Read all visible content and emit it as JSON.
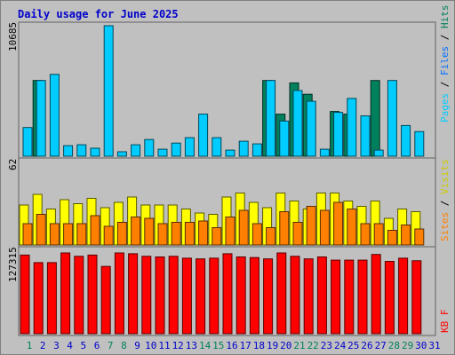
{
  "chart_data": {
    "type": "bar",
    "title": "Daily usage for June 2025",
    "categories": [
      "1",
      "2",
      "3",
      "4",
      "5",
      "6",
      "7",
      "8",
      "9",
      "10",
      "11",
      "12",
      "13",
      "14",
      "15",
      "16",
      "17",
      "18",
      "19",
      "20",
      "21",
      "22",
      "23",
      "24",
      "25",
      "26",
      "27",
      "28",
      "29",
      "30",
      "31"
    ],
    "weekend_days": [
      "1",
      "7",
      "8",
      "14",
      "15",
      "21",
      "22",
      "28",
      "29"
    ],
    "panels": {
      "top": {
        "scale_label": "10685",
        "max": 10685,
        "legend": [
          "Pages",
          "Files",
          "Hits"
        ],
        "series": [
          {
            "name": "Hits",
            "color": "#00805c",
            "values": [
              0,
              6160,
              0,
              0,
              0,
              0,
              0,
              0,
              0,
              0,
              0,
              0,
              0,
              0,
              0,
              0,
              0,
              0,
              6160,
              3420,
              5960,
              5040,
              0,
              3640,
              3420,
              0,
              6160,
              0,
              0,
              0,
              0
            ]
          },
          {
            "name": "Files",
            "color": "#00ccff",
            "values": [
              2330,
              6160,
              6660,
              860,
              930,
              650,
              10610,
              360,
              930,
              1360,
              570,
              1070,
              1510,
              3420,
              1510,
              500,
              1220,
              1000,
              6160,
              2860,
              5340,
              4470,
              570,
              3570,
              4700,
              3280,
              500,
              6160,
              2500,
              2000,
              0
            ]
          },
          {
            "name": "Pages",
            "color": "#0070ff",
            "values": [
              0,
              0,
              0,
              0,
              0,
              0,
              0,
              0,
              0,
              0,
              0,
              0,
              0,
              0,
              0,
              0,
              0,
              0,
              0,
              0,
              0,
              0,
              0,
              0,
              0,
              0,
              0,
              0,
              0,
              0,
              0
            ]
          }
        ]
      },
      "middle": {
        "scale_label": "62",
        "max": 62,
        "legend": [
          "Sites",
          "Visits"
        ],
        "series": [
          {
            "name": "Visits",
            "color": "#ffff00",
            "values": [
              30,
              38,
              27,
              34,
              31,
              35,
              28,
              32,
              36,
              30,
              30,
              30,
              27,
              24,
              23,
              36,
              39,
              32,
              28,
              39,
              33,
              27,
              39,
              39,
              33,
              29,
              33,
              20,
              27,
              25,
              0
            ]
          },
          {
            "name": "Sites",
            "color": "#ff8000",
            "values": [
              16,
              23,
              16,
              16,
              16,
              22,
              14,
              17,
              21,
              20,
              16,
              17,
              17,
              18,
              13,
              21,
              26,
              16,
              13,
              25,
              17,
              29,
              26,
              32,
              27,
              16,
              16,
              11,
              15,
              12,
              0
            ]
          }
        ]
      },
      "bottom": {
        "scale_label": "127315",
        "max": 127315,
        "legend": [
          "KBytes"
        ],
        "legend_text": "KB F",
        "series": [
          {
            "name": "KBytes",
            "color": "#ff0000",
            "values": [
              124000,
              112000,
              112000,
              127300,
              122000,
              124000,
              106000,
              127315,
              126000,
              122000,
              121000,
              122000,
              119000,
              118000,
              119000,
              126000,
              121000,
              120000,
              118000,
              127315,
              122000,
              118000,
              121000,
              116000,
              116000,
              116000,
              125000,
              114000,
              119000,
              115000,
              0
            ]
          }
        ]
      }
    },
    "colors": {
      "background": "#c0c0c0",
      "day_label": "#0000cc",
      "weekend_label": "#00805c",
      "pages_label": "#00ccff",
      "files_label": "#0070ff",
      "hits_label": "#00805c",
      "sites_label": "#ff8000",
      "visits_label": "#cccc00",
      "kbytes_label": "#ff0000"
    }
  }
}
